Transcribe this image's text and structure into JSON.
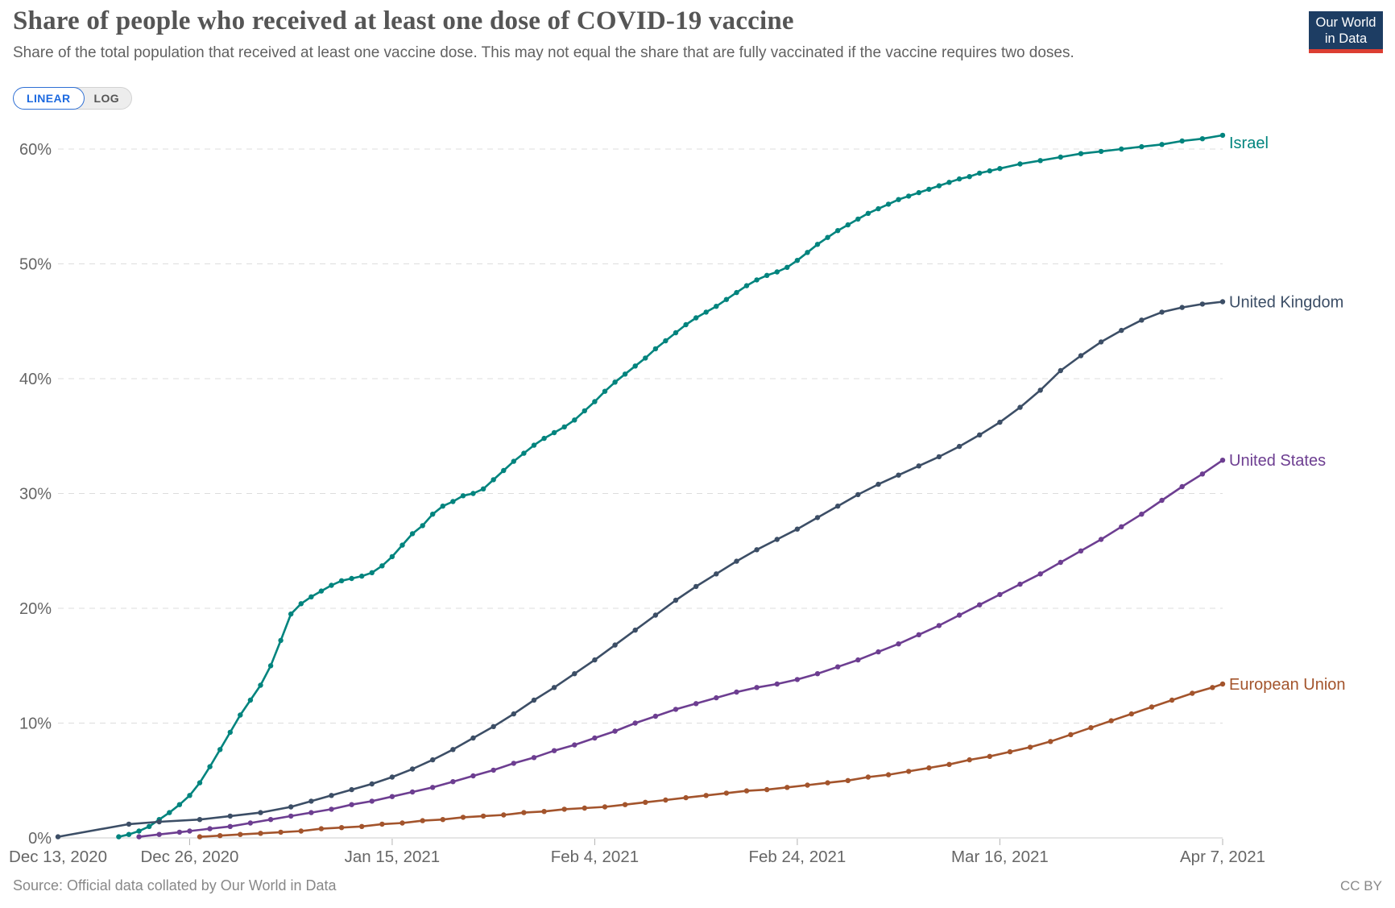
{
  "logo": {
    "line1": "Our World",
    "line2": "in Data",
    "bg": "#1d3d63",
    "accent": "#dc3e32"
  },
  "controls": {
    "options": [
      {
        "label": "LINEAR",
        "active": true
      },
      {
        "label": "LOG",
        "active": false
      }
    ],
    "accent": "#1d6ae0"
  },
  "footer": {
    "source": "Source: Official data collated by Our World in Data",
    "license": "CC BY"
  },
  "chart_data": {
    "type": "line",
    "title": "Share of people who received at least one dose of COVID-19 vaccine",
    "subtitle": "Share of the total population that received at least one vaccine dose. This may not equal the share that are fully vaccinated if the vaccine requires two doses.",
    "xlabel": "",
    "ylabel": "",
    "x_unit": "days since Dec 13, 2020",
    "xlim_days": [
      0,
      115
    ],
    "ylim": [
      0,
      62
    ],
    "yticks": [
      0,
      10,
      20,
      30,
      40,
      50,
      60
    ],
    "ytick_suffix": "%",
    "grid": "dashed-horizontal",
    "legend_position": "end-of-line-labels",
    "x_ticks": [
      {
        "day": 0,
        "label": "Dec 13, 2020"
      },
      {
        "day": 13,
        "label": "Dec 26, 2020"
      },
      {
        "day": 33,
        "label": "Jan 15, 2021"
      },
      {
        "day": 53,
        "label": "Feb 4, 2021"
      },
      {
        "day": 73,
        "label": "Feb 24, 2021"
      },
      {
        "day": 93,
        "label": "Mar 16, 2021"
      },
      {
        "day": 115,
        "label": "Apr 7, 2021"
      }
    ],
    "series": [
      {
        "name": "Israel",
        "color": "#00847e",
        "points": [
          [
            6,
            0.1
          ],
          [
            7,
            0.3
          ],
          [
            8,
            0.6
          ],
          [
            9,
            1.0
          ],
          [
            10,
            1.6
          ],
          [
            11,
            2.2
          ],
          [
            12,
            2.9
          ],
          [
            13,
            3.7
          ],
          [
            14,
            4.8
          ],
          [
            15,
            6.2
          ],
          [
            16,
            7.7
          ],
          [
            17,
            9.2
          ],
          [
            18,
            10.7
          ],
          [
            19,
            12.0
          ],
          [
            20,
            13.3
          ],
          [
            21,
            15.0
          ],
          [
            22,
            17.2
          ],
          [
            23,
            19.5
          ],
          [
            24,
            20.4
          ],
          [
            25,
            21.0
          ],
          [
            26,
            21.5
          ],
          [
            27,
            22.0
          ],
          [
            28,
            22.4
          ],
          [
            29,
            22.6
          ],
          [
            30,
            22.8
          ],
          [
            31,
            23.1
          ],
          [
            32,
            23.7
          ],
          [
            33,
            24.5
          ],
          [
            34,
            25.5
          ],
          [
            35,
            26.5
          ],
          [
            36,
            27.2
          ],
          [
            37,
            28.2
          ],
          [
            38,
            28.9
          ],
          [
            39,
            29.3
          ],
          [
            40,
            29.8
          ],
          [
            41,
            30.0
          ],
          [
            42,
            30.4
          ],
          [
            43,
            31.2
          ],
          [
            44,
            32.0
          ],
          [
            45,
            32.8
          ],
          [
            46,
            33.5
          ],
          [
            47,
            34.2
          ],
          [
            48,
            34.8
          ],
          [
            49,
            35.3
          ],
          [
            50,
            35.8
          ],
          [
            51,
            36.4
          ],
          [
            52,
            37.2
          ],
          [
            53,
            38.0
          ],
          [
            54,
            38.9
          ],
          [
            55,
            39.7
          ],
          [
            56,
            40.4
          ],
          [
            57,
            41.1
          ],
          [
            58,
            41.8
          ],
          [
            59,
            42.6
          ],
          [
            60,
            43.3
          ],
          [
            61,
            44.0
          ],
          [
            62,
            44.7
          ],
          [
            63,
            45.3
          ],
          [
            64,
            45.8
          ],
          [
            65,
            46.3
          ],
          [
            66,
            46.9
          ],
          [
            67,
            47.5
          ],
          [
            68,
            48.1
          ],
          [
            69,
            48.6
          ],
          [
            70,
            49.0
          ],
          [
            71,
            49.3
          ],
          [
            72,
            49.7
          ],
          [
            73,
            50.3
          ],
          [
            74,
            51.0
          ],
          [
            75,
            51.7
          ],
          [
            76,
            52.3
          ],
          [
            77,
            52.9
          ],
          [
            78,
            53.4
          ],
          [
            79,
            53.9
          ],
          [
            80,
            54.4
          ],
          [
            81,
            54.8
          ],
          [
            82,
            55.2
          ],
          [
            83,
            55.6
          ],
          [
            84,
            55.9
          ],
          [
            85,
            56.2
          ],
          [
            86,
            56.5
          ],
          [
            87,
            56.8
          ],
          [
            88,
            57.1
          ],
          [
            89,
            57.4
          ],
          [
            90,
            57.6
          ],
          [
            91,
            57.9
          ],
          [
            92,
            58.1
          ],
          [
            93,
            58.3
          ],
          [
            95,
            58.7
          ],
          [
            97,
            59.0
          ],
          [
            99,
            59.3
          ],
          [
            101,
            59.6
          ],
          [
            103,
            59.8
          ],
          [
            105,
            60.0
          ],
          [
            107,
            60.2
          ],
          [
            109,
            60.4
          ],
          [
            111,
            60.7
          ],
          [
            113,
            60.9
          ],
          [
            115,
            61.2
          ]
        ]
      },
      {
        "name": "United Kingdom",
        "color": "#3c4e66",
        "points": [
          [
            0,
            0.1
          ],
          [
            7,
            1.2
          ],
          [
            10,
            1.4
          ],
          [
            14,
            1.6
          ],
          [
            17,
            1.9
          ],
          [
            20,
            2.2
          ],
          [
            23,
            2.7
          ],
          [
            25,
            3.2
          ],
          [
            27,
            3.7
          ],
          [
            29,
            4.2
          ],
          [
            31,
            4.7
          ],
          [
            33,
            5.3
          ],
          [
            35,
            6.0
          ],
          [
            37,
            6.8
          ],
          [
            39,
            7.7
          ],
          [
            41,
            8.7
          ],
          [
            43,
            9.7
          ],
          [
            45,
            10.8
          ],
          [
            47,
            12.0
          ],
          [
            49,
            13.1
          ],
          [
            51,
            14.3
          ],
          [
            53,
            15.5
          ],
          [
            55,
            16.8
          ],
          [
            57,
            18.1
          ],
          [
            59,
            19.4
          ],
          [
            61,
            20.7
          ],
          [
            63,
            21.9
          ],
          [
            65,
            23.0
          ],
          [
            67,
            24.1
          ],
          [
            69,
            25.1
          ],
          [
            71,
            26.0
          ],
          [
            73,
            26.9
          ],
          [
            75,
            27.9
          ],
          [
            77,
            28.9
          ],
          [
            79,
            29.9
          ],
          [
            81,
            30.8
          ],
          [
            83,
            31.6
          ],
          [
            85,
            32.4
          ],
          [
            87,
            33.2
          ],
          [
            89,
            34.1
          ],
          [
            91,
            35.1
          ],
          [
            93,
            36.2
          ],
          [
            95,
            37.5
          ],
          [
            97,
            39.0
          ],
          [
            99,
            40.7
          ],
          [
            101,
            42.0
          ],
          [
            103,
            43.2
          ],
          [
            105,
            44.2
          ],
          [
            107,
            45.1
          ],
          [
            109,
            45.8
          ],
          [
            111,
            46.2
          ],
          [
            113,
            46.5
          ],
          [
            115,
            46.7
          ]
        ]
      },
      {
        "name": "United States",
        "color": "#6d3e91",
        "points": [
          [
            8,
            0.1
          ],
          [
            10,
            0.3
          ],
          [
            12,
            0.5
          ],
          [
            13,
            0.6
          ],
          [
            15,
            0.8
          ],
          [
            17,
            1.0
          ],
          [
            19,
            1.3
          ],
          [
            21,
            1.6
          ],
          [
            23,
            1.9
          ],
          [
            25,
            2.2
          ],
          [
            27,
            2.5
          ],
          [
            29,
            2.9
          ],
          [
            31,
            3.2
          ],
          [
            33,
            3.6
          ],
          [
            35,
            4.0
          ],
          [
            37,
            4.4
          ],
          [
            39,
            4.9
          ],
          [
            41,
            5.4
          ],
          [
            43,
            5.9
          ],
          [
            45,
            6.5
          ],
          [
            47,
            7.0
          ],
          [
            49,
            7.6
          ],
          [
            51,
            8.1
          ],
          [
            53,
            8.7
          ],
          [
            55,
            9.3
          ],
          [
            57,
            10.0
          ],
          [
            59,
            10.6
          ],
          [
            61,
            11.2
          ],
          [
            63,
            11.7
          ],
          [
            65,
            12.2
          ],
          [
            67,
            12.7
          ],
          [
            69,
            13.1
          ],
          [
            71,
            13.4
          ],
          [
            73,
            13.8
          ],
          [
            75,
            14.3
          ],
          [
            77,
            14.9
          ],
          [
            79,
            15.5
          ],
          [
            81,
            16.2
          ],
          [
            83,
            16.9
          ],
          [
            85,
            17.7
          ],
          [
            87,
            18.5
          ],
          [
            89,
            19.4
          ],
          [
            91,
            20.3
          ],
          [
            93,
            21.2
          ],
          [
            95,
            22.1
          ],
          [
            97,
            23.0
          ],
          [
            99,
            24.0
          ],
          [
            101,
            25.0
          ],
          [
            103,
            26.0
          ],
          [
            105,
            27.1
          ],
          [
            107,
            28.2
          ],
          [
            109,
            29.4
          ],
          [
            111,
            30.6
          ],
          [
            113,
            31.7
          ],
          [
            115,
            32.9
          ]
        ]
      },
      {
        "name": "European Union",
        "color": "#a3542c",
        "points": [
          [
            14,
            0.1
          ],
          [
            16,
            0.2
          ],
          [
            18,
            0.3
          ],
          [
            20,
            0.4
          ],
          [
            22,
            0.5
          ],
          [
            24,
            0.6
          ],
          [
            26,
            0.8
          ],
          [
            28,
            0.9
          ],
          [
            30,
            1.0
          ],
          [
            32,
            1.2
          ],
          [
            34,
            1.3
          ],
          [
            36,
            1.5
          ],
          [
            38,
            1.6
          ],
          [
            40,
            1.8
          ],
          [
            42,
            1.9
          ],
          [
            44,
            2.0
          ],
          [
            46,
            2.2
          ],
          [
            48,
            2.3
          ],
          [
            50,
            2.5
          ],
          [
            52,
            2.6
          ],
          [
            54,
            2.7
          ],
          [
            56,
            2.9
          ],
          [
            58,
            3.1
          ],
          [
            60,
            3.3
          ],
          [
            62,
            3.5
          ],
          [
            64,
            3.7
          ],
          [
            66,
            3.9
          ],
          [
            68,
            4.1
          ],
          [
            70,
            4.2
          ],
          [
            72,
            4.4
          ],
          [
            74,
            4.6
          ],
          [
            76,
            4.8
          ],
          [
            78,
            5.0
          ],
          [
            80,
            5.3
          ],
          [
            82,
            5.5
          ],
          [
            84,
            5.8
          ],
          [
            86,
            6.1
          ],
          [
            88,
            6.4
          ],
          [
            90,
            6.8
          ],
          [
            92,
            7.1
          ],
          [
            94,
            7.5
          ],
          [
            96,
            7.9
          ],
          [
            98,
            8.4
          ],
          [
            100,
            9.0
          ],
          [
            102,
            9.6
          ],
          [
            104,
            10.2
          ],
          [
            106,
            10.8
          ],
          [
            108,
            11.4
          ],
          [
            110,
            12.0
          ],
          [
            112,
            12.6
          ],
          [
            114,
            13.1
          ],
          [
            115,
            13.4
          ]
        ]
      }
    ]
  }
}
